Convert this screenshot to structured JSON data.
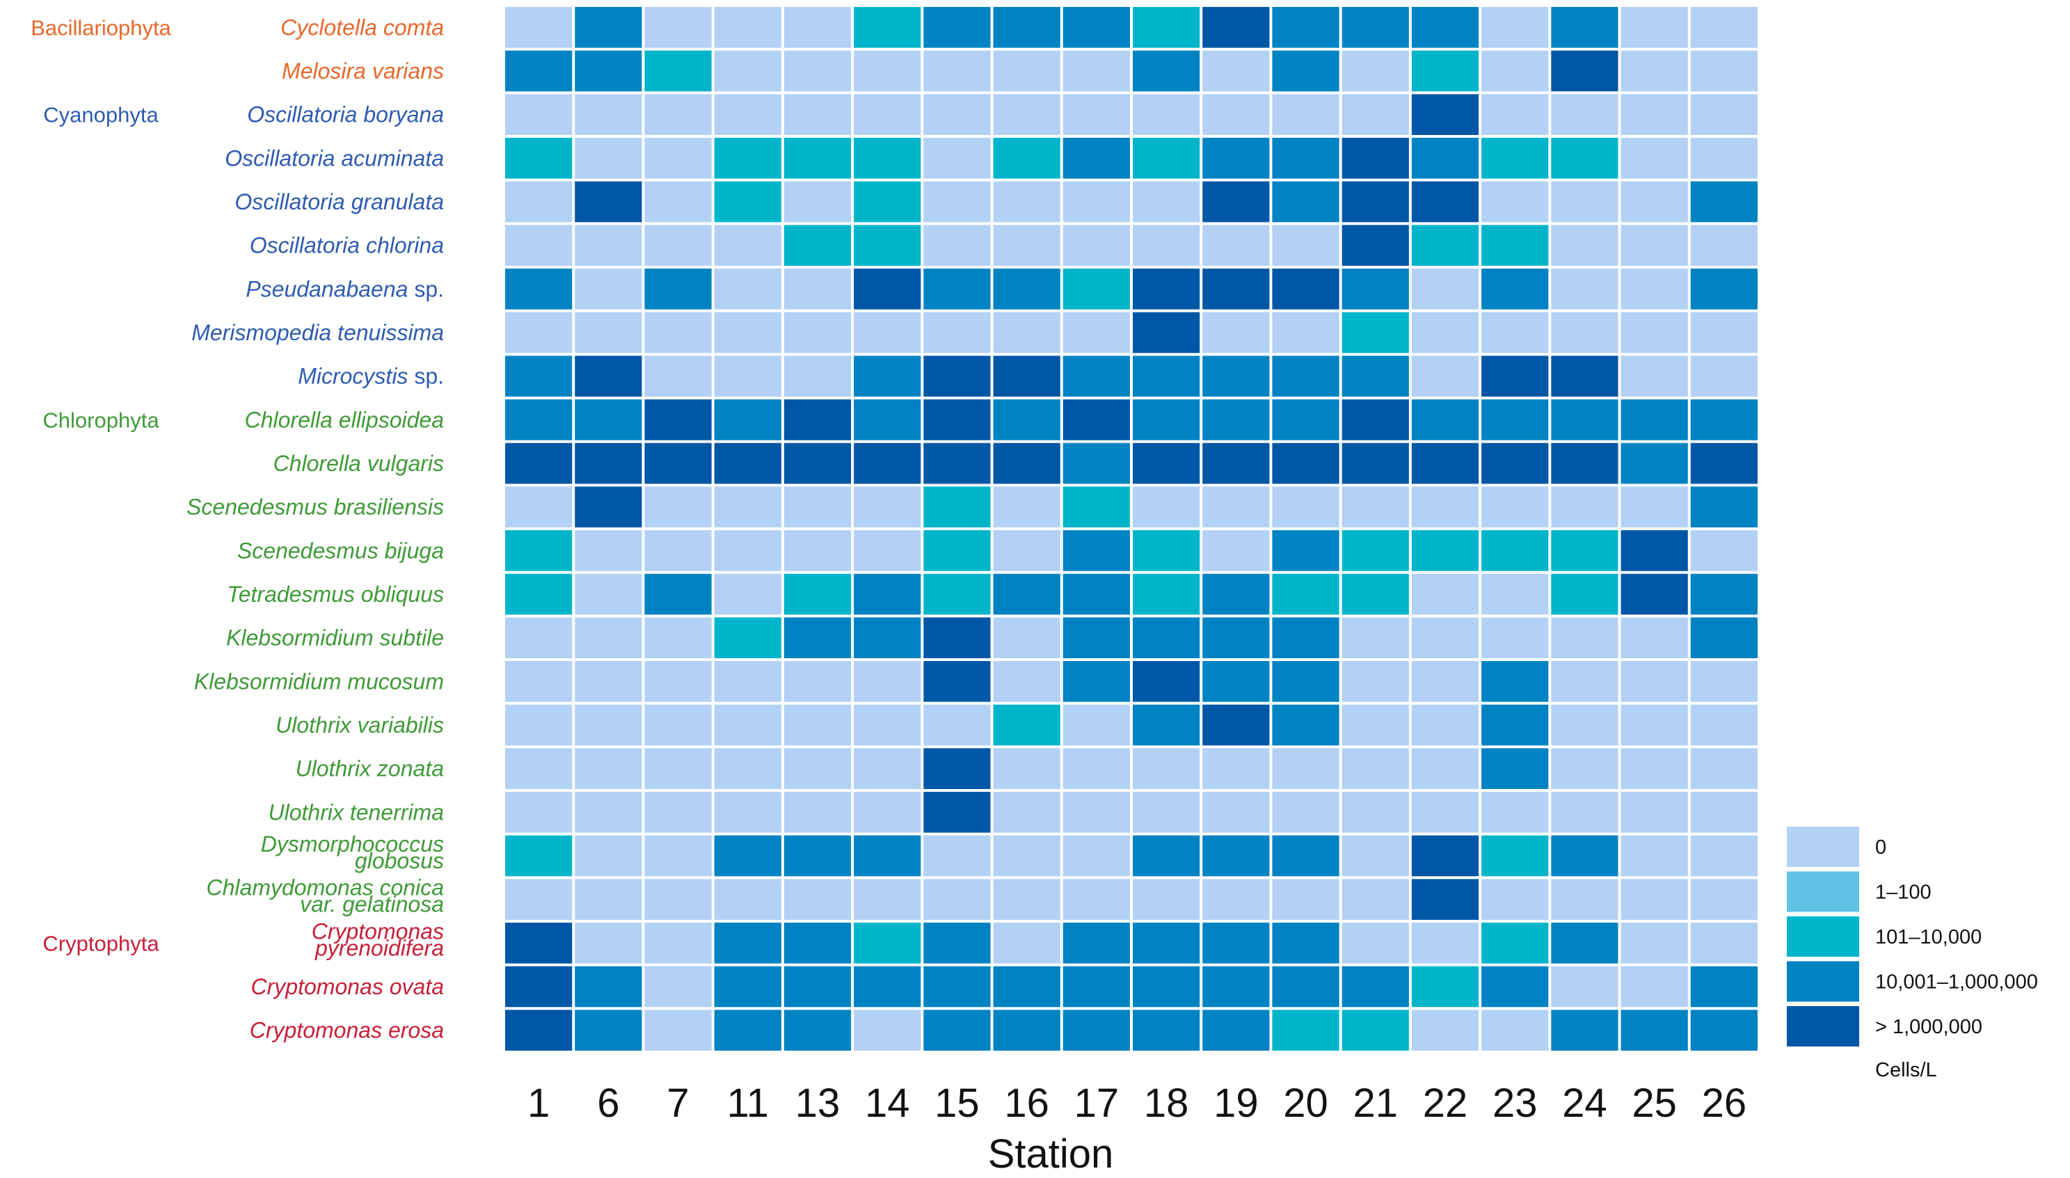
{
  "chart_data": {
    "type": "heatmap",
    "xlabel": "Station",
    "x": [
      "1",
      "6",
      "7",
      "11",
      "13",
      "14",
      "15",
      "16",
      "17",
      "18",
      "19",
      "20",
      "21",
      "22",
      "23",
      "24",
      "25",
      "26"
    ],
    "colorscale": {
      "title": "Cells/L",
      "levels": [
        {
          "label": "0",
          "color": "#b3d1f5"
        },
        {
          "label": "1–100",
          "color": "#62c2e6"
        },
        {
          "label": "101–10,000",
          "color": "#00b5c9"
        },
        {
          "label": "10,001–1,000,000",
          "color": "#0083c2"
        },
        {
          "label": "> 1,000,000",
          "color": "#0057a6"
        }
      ]
    },
    "groups": [
      {
        "name": "Bacillariophyta",
        "color": "#e8682a",
        "rows": [
          0
        ]
      },
      {
        "name": "Cyanophyta",
        "color": "#2e5cb0",
        "rows": [
          2
        ]
      },
      {
        "name": "Chlorophyta",
        "color": "#3f9a37",
        "rows": [
          9
        ]
      },
      {
        "name": "Cryptophyta",
        "color": "#c71f38",
        "rows": [
          21
        ]
      }
    ],
    "rows": [
      {
        "species": [
          "Cyclotella comta"
        ],
        "group": "Bacillariophyta",
        "values": [
          0,
          3,
          0,
          0,
          0,
          2,
          3,
          3,
          3,
          2,
          4,
          3,
          3,
          3,
          0,
          3,
          0,
          0
        ]
      },
      {
        "species": [
          "Melosira varians"
        ],
        "group": "Bacillariophyta",
        "values": [
          3,
          3,
          2,
          0,
          0,
          0,
          0,
          0,
          0,
          3,
          0,
          3,
          0,
          2,
          0,
          4,
          0,
          0
        ]
      },
      {
        "species": [
          "Oscillatoria boryana"
        ],
        "group": "Cyanophyta",
        "values": [
          0,
          0,
          0,
          0,
          0,
          0,
          0,
          0,
          0,
          0,
          0,
          0,
          0,
          4,
          0,
          0,
          0,
          0
        ]
      },
      {
        "species": [
          "Oscillatoria acuminata"
        ],
        "group": "Cyanophyta",
        "values": [
          2,
          0,
          0,
          2,
          2,
          2,
          0,
          2,
          3,
          2,
          3,
          3,
          4,
          3,
          2,
          2,
          0,
          0
        ]
      },
      {
        "species": [
          "Oscillatoria granulata"
        ],
        "group": "Cyanophyta",
        "values": [
          0,
          4,
          0,
          2,
          0,
          2,
          0,
          0,
          0,
          0,
          4,
          3,
          4,
          4,
          0,
          0,
          0,
          3
        ]
      },
      {
        "species": [
          "Oscillatoria chlorina"
        ],
        "group": "Cyanophyta",
        "values": [
          0,
          0,
          0,
          0,
          2,
          2,
          0,
          0,
          0,
          0,
          0,
          0,
          4,
          2,
          2,
          0,
          0,
          0
        ]
      },
      {
        "species": [
          "Pseudanabaena",
          " sp."
        ],
        "group": "Cyanophyta",
        "values": [
          3,
          0,
          3,
          0,
          0,
          4,
          3,
          3,
          2,
          4,
          4,
          4,
          3,
          0,
          3,
          0,
          0,
          3
        ]
      },
      {
        "species": [
          "Merismopedia tenuissima"
        ],
        "group": "Cyanophyta",
        "values": [
          0,
          0,
          0,
          0,
          0,
          0,
          0,
          0,
          0,
          4,
          0,
          0,
          2,
          0,
          0,
          0,
          0,
          0
        ]
      },
      {
        "species": [
          "Microcystis",
          " sp."
        ],
        "group": "Cyanophyta",
        "values": [
          3,
          4,
          0,
          0,
          0,
          3,
          4,
          4,
          3,
          3,
          3,
          3,
          3,
          0,
          4,
          4,
          0,
          0
        ]
      },
      {
        "species": [
          "Chlorella ellipsoidea"
        ],
        "group": "Chlorophyta",
        "values": [
          3,
          3,
          4,
          3,
          4,
          3,
          4,
          3,
          4,
          3,
          3,
          3,
          4,
          3,
          3,
          3,
          3,
          3
        ]
      },
      {
        "species": [
          "Chlorella vulgaris"
        ],
        "group": "Chlorophyta",
        "values": [
          4,
          4,
          4,
          4,
          4,
          4,
          4,
          4,
          3,
          4,
          4,
          4,
          4,
          4,
          4,
          4,
          3,
          4
        ]
      },
      {
        "species": [
          "Scenedesmus brasiliensis"
        ],
        "group": "Chlorophyta",
        "values": [
          0,
          4,
          0,
          0,
          0,
          0,
          2,
          0,
          2,
          0,
          0,
          0,
          0,
          0,
          0,
          0,
          0,
          3
        ]
      },
      {
        "species": [
          "Scenedesmus bijuga"
        ],
        "group": "Chlorophyta",
        "values": [
          2,
          0,
          0,
          0,
          0,
          0,
          2,
          0,
          3,
          2,
          0,
          3,
          2,
          2,
          2,
          2,
          4,
          0
        ]
      },
      {
        "species": [
          "Tetradesmus obliquus"
        ],
        "group": "Chlorophyta",
        "values": [
          2,
          0,
          3,
          0,
          2,
          3,
          2,
          3,
          3,
          2,
          3,
          2,
          2,
          0,
          0,
          2,
          4,
          3
        ]
      },
      {
        "species": [
          "Klebsormidium subtile"
        ],
        "group": "Chlorophyta",
        "values": [
          0,
          0,
          0,
          2,
          3,
          3,
          4,
          0,
          3,
          3,
          3,
          3,
          0,
          0,
          0,
          0,
          0,
          3
        ]
      },
      {
        "species": [
          "Klebsormidium mucosum"
        ],
        "group": "Chlorophyta",
        "values": [
          0,
          0,
          0,
          0,
          0,
          0,
          4,
          0,
          3,
          4,
          3,
          3,
          0,
          0,
          3,
          0,
          0,
          0
        ]
      },
      {
        "species": [
          "Ulothrix variabilis"
        ],
        "group": "Chlorophyta",
        "values": [
          0,
          0,
          0,
          0,
          0,
          0,
          0,
          2,
          0,
          3,
          4,
          3,
          0,
          0,
          3,
          0,
          0,
          0
        ]
      },
      {
        "species": [
          "Ulothrix zonata"
        ],
        "group": "Chlorophyta",
        "values": [
          0,
          0,
          0,
          0,
          0,
          0,
          4,
          0,
          0,
          0,
          0,
          0,
          0,
          0,
          3,
          0,
          0,
          0
        ]
      },
      {
        "species": [
          "Ulothrix tenerrima"
        ],
        "group": "Chlorophyta",
        "values": [
          0,
          0,
          0,
          0,
          0,
          0,
          4,
          0,
          0,
          0,
          0,
          0,
          0,
          0,
          0,
          0,
          0,
          0
        ]
      },
      {
        "species": [
          "Dysmorphococcus",
          "globosus"
        ],
        "group": "Chlorophyta",
        "values": [
          2,
          0,
          0,
          3,
          3,
          3,
          0,
          0,
          0,
          3,
          3,
          3,
          0,
          4,
          2,
          3,
          0,
          0
        ]
      },
      {
        "species": [
          "Chlamydomonas conica",
          "var. gelatinosa"
        ],
        "group": "Chlorophyta",
        "values": [
          0,
          0,
          0,
          0,
          0,
          0,
          0,
          0,
          0,
          0,
          0,
          0,
          0,
          4,
          0,
          0,
          0,
          0
        ]
      },
      {
        "species": [
          "Cryptomonas",
          "pyrenoidifera"
        ],
        "group": "Cryptophyta",
        "values": [
          4,
          0,
          0,
          3,
          3,
          2,
          3,
          0,
          3,
          3,
          3,
          3,
          0,
          0,
          2,
          3,
          0,
          0
        ]
      },
      {
        "species": [
          "Cryptomonas ovata"
        ],
        "group": "Cryptophyta",
        "values": [
          4,
          3,
          0,
          3,
          3,
          3,
          3,
          3,
          3,
          3,
          3,
          3,
          3,
          2,
          3,
          0,
          0,
          3
        ]
      },
      {
        "species": [
          "Cryptomonas erosa"
        ],
        "group": "Cryptophyta",
        "values": [
          4,
          3,
          0,
          3,
          3,
          0,
          3,
          3,
          3,
          3,
          3,
          2,
          2,
          0,
          0,
          3,
          3,
          3
        ]
      }
    ]
  }
}
